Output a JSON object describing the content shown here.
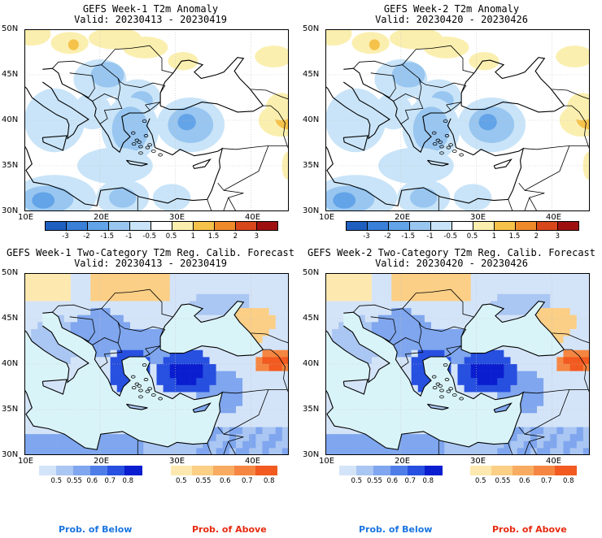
{
  "panels": [
    {
      "title": "GEFS Week-1 T2m Anomaly",
      "valid": "Valid: 20230413 - 20230419"
    },
    {
      "title": "GEFS Week-2 T2m Anomaly",
      "valid": "Valid: 20230420 - 20230426"
    },
    {
      "title": "GEFS Week-1 Two-Category T2m Reg. Calib. Forecast",
      "valid": "Valid: 20230413 - 20230419"
    },
    {
      "title": "GEFS Week-2 Two-Category T2m Reg. Calib. Forecast",
      "valid": "Valid: 20230420 - 20230426"
    }
  ],
  "axes": {
    "lat_labels": [
      "50N",
      "45N",
      "40N",
      "35N",
      "30N"
    ],
    "lon_labels": [
      "10E",
      "20E",
      "30E",
      "40E"
    ]
  },
  "anomaly_colorbar": {
    "labels": [
      "-3",
      "-2",
      "-1.5",
      "-1",
      "-0.5",
      "0.5",
      "1",
      "1.5",
      "2",
      "3"
    ],
    "colors": [
      "#1f5fbf",
      "#3a7fd8",
      "#63a3e8",
      "#98c6f0",
      "#c9e4f8",
      "#ffffff",
      "#fbefb0",
      "#f6c24a",
      "#ee8a2a",
      "#d8461c",
      "#9e1010"
    ]
  },
  "prob_colorbars": {
    "below": {
      "labels": [
        "0.5",
        "0.55",
        "0.6",
        "0.7",
        "0.8"
      ],
      "colors": [
        "#d4e4f8",
        "#aac6f2",
        "#7fa6ee",
        "#4f7de8",
        "#2750e0",
        "#0a1ecf"
      ]
    },
    "above": {
      "labels": [
        "0.5",
        "0.55",
        "0.6",
        "0.7",
        "0.8"
      ],
      "colors": [
        "#fde9b0",
        "#fbcf86",
        "#f8ac62",
        "#f58642",
        "#f25a20"
      ]
    }
  },
  "legend": {
    "below": "Prob. of Below",
    "above": "Prob. of Above",
    "below_color": "#1a75e0",
    "above_color": "#e62a10"
  }
}
